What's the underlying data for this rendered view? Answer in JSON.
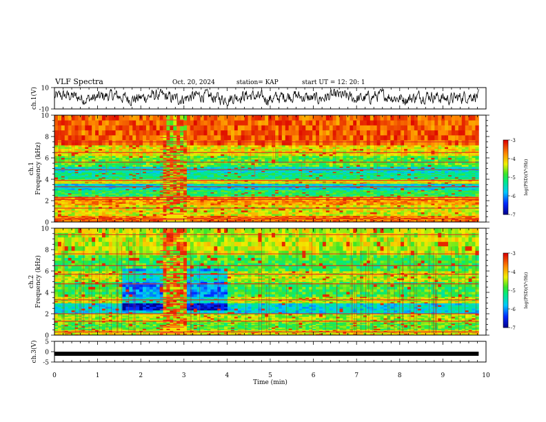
{
  "header": {
    "title": "VLF Spectra",
    "date": "Oct. 20, 2024",
    "station": "station= KAP",
    "start": "start  UT  =   12: 20: 1"
  },
  "chart_data": [
    {
      "type": "line",
      "panel": "ch1-waveform",
      "ylabel": "ch.1(V)",
      "ylim": [
        -10,
        10
      ],
      "yticks": [
        "10",
        "-10"
      ],
      "xlim": [
        0,
        10
      ],
      "color": "#000000",
      "description_values": "noisy waveform oscillating roughly between -6 and 8 V"
    },
    {
      "type": "heatmap",
      "panel": "ch1-spectrogram",
      "ylabel": "ch.1\nFrequency (kHz)",
      "ylabel_line1": "ch.1",
      "ylabel_line2": "Frequency (kHz)",
      "ylim": [
        0,
        10
      ],
      "yticks": [
        "0",
        "2",
        "4",
        "6",
        "8",
        "10"
      ],
      "xlim": [
        0,
        10
      ],
      "data_end_min": 9.83,
      "disturbance_min": [
        2.45,
        3.0
      ],
      "colorbar": {
        "min": -7,
        "max": -3,
        "ticks": [
          "-3",
          "-4",
          "-5",
          "-6",
          "-7"
        ],
        "label": "log(PSD)(V²/Hz)"
      },
      "bands_khz": [
        {
          "lo": 0.0,
          "hi": 0.6,
          "level": -3.6
        },
        {
          "lo": 0.6,
          "hi": 1.6,
          "level": -4.3
        },
        {
          "lo": 1.6,
          "hi": 2.4,
          "level": -3.8
        },
        {
          "lo": 2.4,
          "hi": 3.0,
          "level": -5.0
        },
        {
          "lo": 3.0,
          "hi": 3.6,
          "level": -5.6
        },
        {
          "lo": 3.6,
          "hi": 4.0,
          "level": -4.2
        },
        {
          "lo": 4.0,
          "hi": 4.6,
          "level": -5.2
        },
        {
          "lo": 4.6,
          "hi": 5.2,
          "level": -5.5
        },
        {
          "lo": 5.2,
          "hi": 6.2,
          "level": -4.8
        },
        {
          "lo": 6.2,
          "hi": 7.2,
          "level": -4.2
        },
        {
          "lo": 7.2,
          "hi": 10.0,
          "level": -3.5
        }
      ],
      "lines_khz": [
        0.3,
        1.3,
        2.1,
        2.3,
        3.3,
        3.9,
        4.9,
        5.6,
        6.5,
        7.5
      ]
    },
    {
      "type": "heatmap",
      "panel": "ch2-spectrogram",
      "ylabel": "ch.2\nFrequency (kHz)",
      "ylabel_line1": "ch.2",
      "ylabel_line2": "Frequency (kHz)",
      "ylim": [
        0,
        10
      ],
      "yticks": [
        "0",
        "2",
        "4",
        "6",
        "8",
        "10"
      ],
      "xlim": [
        0,
        10
      ],
      "data_end_min": 9.83,
      "disturbance_min": [
        2.45,
        3.0
      ],
      "quiet_regions_min": [
        [
          1.5,
          2.45
        ],
        [
          3.05,
          4.0
        ]
      ],
      "colorbar": {
        "min": -7,
        "max": -3,
        "ticks": [
          "-3",
          "-4",
          "-5",
          "-6",
          "-7"
        ],
        "label": "log(PSD)(V²/Hz)"
      },
      "bands_khz": [
        {
          "lo": 0.0,
          "hi": 0.5,
          "level": -4.2
        },
        {
          "lo": 0.5,
          "hi": 1.2,
          "level": -4.8
        },
        {
          "lo": 1.2,
          "hi": 2.0,
          "level": -4.5
        },
        {
          "lo": 2.0,
          "hi": 3.0,
          "level": -5.6
        },
        {
          "lo": 3.0,
          "hi": 3.6,
          "level": -4.4
        },
        {
          "lo": 3.6,
          "hi": 5.0,
          "level": -4.9
        },
        {
          "lo": 5.0,
          "hi": 6.0,
          "level": -4.4
        },
        {
          "lo": 6.0,
          "hi": 7.5,
          "level": -4.9
        },
        {
          "lo": 7.5,
          "hi": 10.0,
          "level": -4.4
        }
      ],
      "lines_khz": [
        0.3,
        1.3,
        2.0,
        3.3,
        4.8,
        5.7,
        6.5,
        7.6,
        9.4
      ]
    },
    {
      "type": "line",
      "panel": "ch3-waveform",
      "ylabel": "ch.3(V)",
      "ylim": [
        -5,
        5
      ],
      "yticks": [
        "5",
        "0",
        "-5"
      ],
      "xlim": [
        0,
        10
      ],
      "value_V": -1.0,
      "color": "#000000",
      "xlabel": "Time (min)",
      "xticks": [
        "0",
        "1",
        "2",
        "3",
        "4",
        "5",
        "6",
        "7",
        "8",
        "9",
        "10"
      ]
    }
  ]
}
